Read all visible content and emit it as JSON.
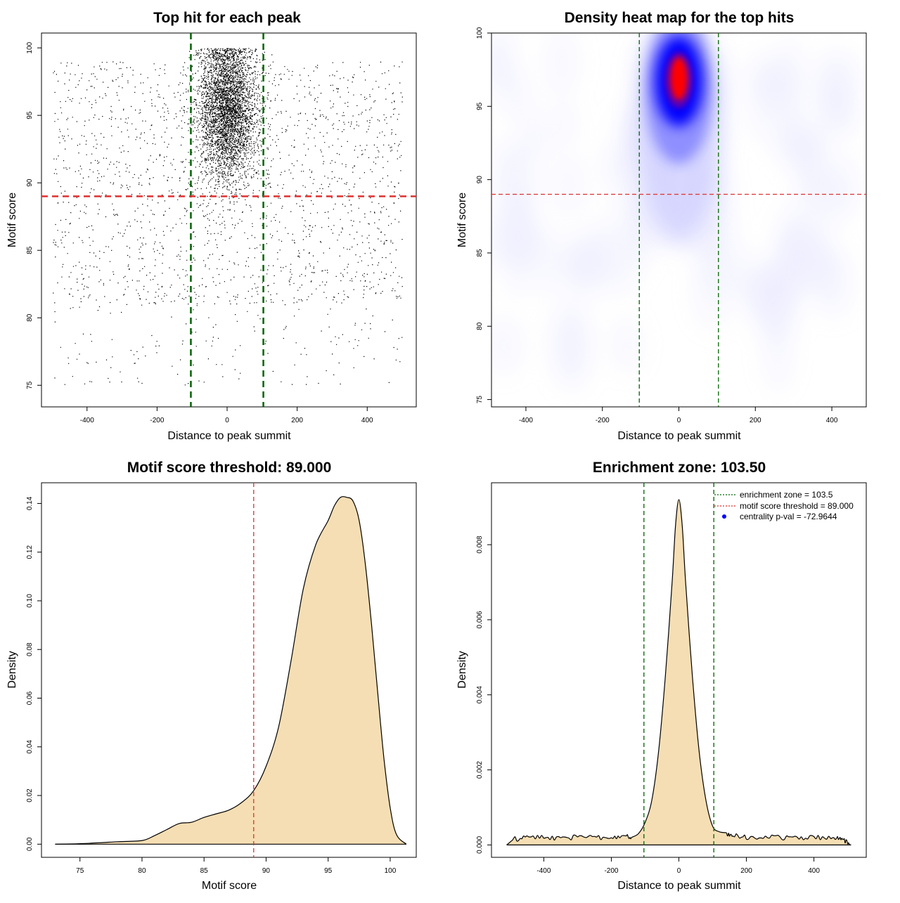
{
  "chart_data": [
    {
      "id": "scatter",
      "type": "scatter",
      "title": "Top hit for each peak",
      "xlabel": "Distance to peak summit",
      "ylabel": "Motif score",
      "xlim": [
        -530,
        540
      ],
      "ylim": [
        73.4,
        101.1
      ],
      "xticks": [
        -400,
        -200,
        0,
        200,
        400
      ],
      "yticks": [
        75,
        80,
        85,
        90,
        95,
        100
      ],
      "vlines": [
        -103.5,
        103.5
      ],
      "hline": 89,
      "vline_color": "#006400",
      "hline_color": "#e03030",
      "point_color": "#000000",
      "points_approx": 6200,
      "center_cluster": {
        "x_sd": 42,
        "y_mean": 96.2,
        "y_sd": 2.6,
        "y_max": 100
      },
      "background_spread": {
        "x_range": [
          -500,
          500
        ],
        "y_range": [
          75,
          99.5
        ]
      }
    },
    {
      "id": "heatmap",
      "type": "heatmap",
      "title": "Density heat map for the top hits",
      "xlabel": "Distance to peak summit",
      "ylabel": "Motif score",
      "xlim": [
        -490,
        490
      ],
      "ylim": [
        74.5,
        100
      ],
      "xticks": [
        -400,
        -200,
        0,
        200,
        400
      ],
      "yticks": [
        75,
        80,
        85,
        90,
        95,
        100
      ],
      "vlines": [
        -103.5,
        103.5
      ],
      "hline": 89,
      "vline_color": "#006400",
      "hline_color": "#e03030",
      "peak": {
        "x": 0,
        "y": 96.6
      },
      "colors": [
        "#ffffff",
        "#0000ff",
        "#ff0000"
      ]
    },
    {
      "id": "score-density",
      "type": "area",
      "title": "Motif score threshold: 89.000",
      "xlabel": "Motif score",
      "ylabel": "Density",
      "xlim": [
        71.9,
        102.1
      ],
      "ylim": [
        -0.0054,
        0.1485
      ],
      "xticks": [
        75,
        80,
        85,
        90,
        95,
        100
      ],
      "yticks": [
        0.0,
        0.02,
        0.04,
        0.06,
        0.08,
        0.1,
        0.12,
        0.14
      ],
      "ytick_labels": [
        "0.00",
        "0.02",
        "0.04",
        "0.06",
        "0.08",
        "0.10",
        "0.12",
        "0.14"
      ],
      "vline": 89,
      "vline_color": "#e03030",
      "fill_color": "#f5deb3",
      "x": [
        73,
        75,
        78,
        80,
        81,
        82,
        83,
        84,
        85,
        86,
        87,
        88,
        89,
        90,
        91,
        92,
        93,
        94,
        95,
        95.5,
        96,
        96.5,
        97,
        97.5,
        98,
        98.5,
        99,
        99.5,
        100,
        100.5,
        101.3
      ],
      "y": [
        0,
        0.0002,
        0.001,
        0.0015,
        0.0035,
        0.006,
        0.0085,
        0.009,
        0.011,
        0.0125,
        0.014,
        0.017,
        0.022,
        0.032,
        0.048,
        0.075,
        0.105,
        0.123,
        0.133,
        0.139,
        0.1425,
        0.1425,
        0.141,
        0.133,
        0.115,
        0.09,
        0.062,
        0.035,
        0.015,
        0.004,
        0
      ]
    },
    {
      "id": "distance-density",
      "type": "area",
      "title": "Enrichment zone: 103.50",
      "xlabel": "Distance to peak summit",
      "ylabel": "Density",
      "xlim": [
        -555,
        555
      ],
      "ylim": [
        -0.00033,
        0.00965
      ],
      "xticks": [
        -400,
        -200,
        0,
        200,
        400
      ],
      "yticks": [
        0.0,
        0.002,
        0.004,
        0.006,
        0.008
      ],
      "ytick_labels": [
        "0.000",
        "0.002",
        "0.004",
        "0.006",
        "0.008"
      ],
      "vlines": [
        -103.5,
        103.5
      ],
      "vline_color": "#006400",
      "fill_color": "#f5deb3",
      "x": [
        -510,
        -490,
        -450,
        -400,
        -350,
        -300,
        -250,
        -200,
        -160,
        -140,
        -120,
        -100,
        -80,
        -60,
        -40,
        -20,
        -10,
        0,
        10,
        20,
        40,
        60,
        80,
        100,
        120,
        140,
        160,
        200,
        250,
        300,
        350,
        400,
        450,
        470,
        490,
        510
      ],
      "y": [
        0,
        0.00015,
        0.0002,
        0.0002,
        0.00018,
        0.0002,
        0.0002,
        0.0002,
        0.00025,
        0.0002,
        0.0003,
        0.0006,
        0.0012,
        0.0025,
        0.0045,
        0.007,
        0.0085,
        0.0092,
        0.0085,
        0.007,
        0.0045,
        0.0025,
        0.0012,
        0.0005,
        0.00035,
        0.0003,
        0.00025,
        0.0002,
        0.00022,
        0.0002,
        0.00018,
        0.0002,
        0.00018,
        0.00022,
        0.00012,
        0
      ],
      "legend": {
        "position": "top-right",
        "entries": [
          {
            "label": "enrichment zone = 103.5",
            "color": "#006400",
            "style": "dotted-line"
          },
          {
            "label": "motif score threshold = 89.000",
            "color": "#e03030",
            "style": "dotted-line"
          },
          {
            "label": "centrality p-val = -72.9644",
            "color": "#0000ff",
            "style": "dot"
          }
        ]
      }
    }
  ]
}
